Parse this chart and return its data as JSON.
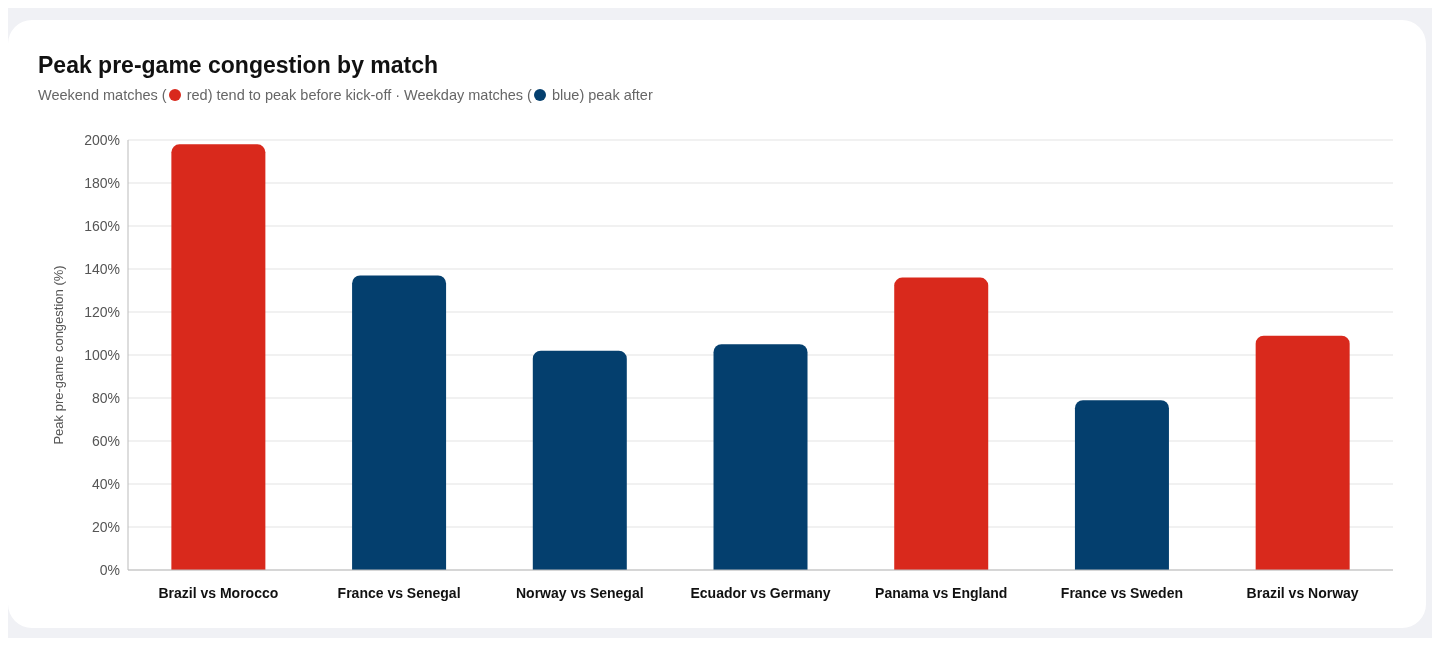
{
  "chart_data": {
    "type": "bar",
    "title": "Peak pre-game congestion by match",
    "subtitle": "Weekend matches ( red) tend to peak before kick-off · Weekday matches ( blue) peak after",
    "ylabel": "Peak pre-game congestion (%)",
    "categories": [
      "Brazil vs Morocco",
      "France vs Senegal",
      "Norway vs Senegal",
      "Ecuador vs Germany",
      "Panama vs England",
      "France vs Sweden",
      "Brazil vs Norway"
    ],
    "values": [
      198,
      137,
      102,
      105,
      136,
      79,
      109
    ],
    "colors": [
      "#d9291c",
      "#043f6e",
      "#043f6e",
      "#043f6e",
      "#d9291c",
      "#043f6e",
      "#d9291c"
    ],
    "ylim": [
      0,
      200
    ],
    "yticks": [
      {
        "value": 0,
        "label": "0%"
      },
      {
        "value": 20,
        "label": "20%"
      },
      {
        "value": 40,
        "label": "40%"
      },
      {
        "value": 60,
        "label": "60%"
      },
      {
        "value": 80,
        "label": "80%"
      },
      {
        "value": 100,
        "label": "100%"
      },
      {
        "value": 120,
        "label": "120%"
      },
      {
        "value": 140,
        "label": "140%"
      },
      {
        "value": 160,
        "label": "160%"
      },
      {
        "value": 180,
        "label": "180%"
      },
      {
        "value": 200,
        "label": "200%"
      }
    ],
    "grid": "y"
  }
}
